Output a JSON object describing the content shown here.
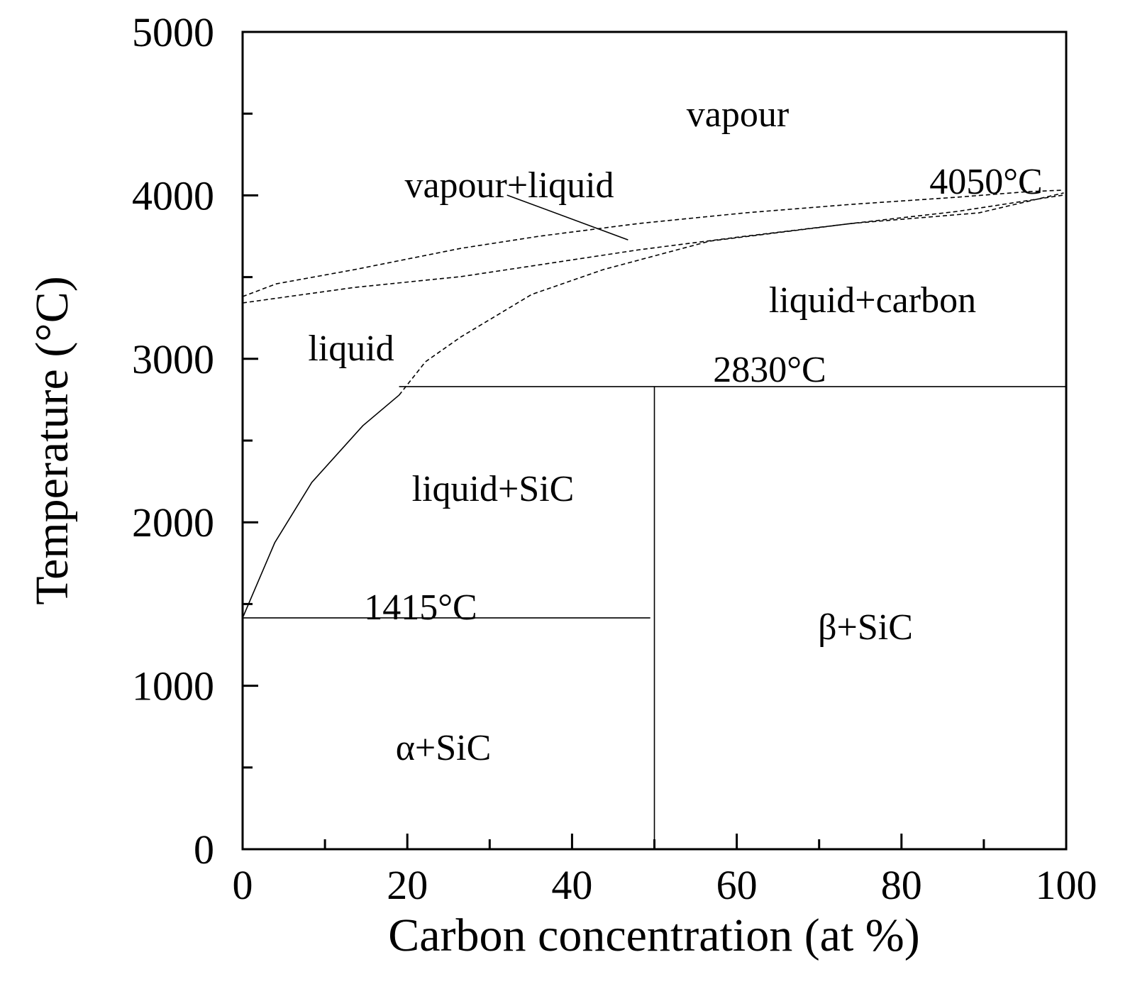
{
  "chart_data": {
    "type": "line",
    "xlabel": "Carbon concentration (at %)",
    "ylabel": "Temperature (°C)",
    "xlim": [
      0,
      100
    ],
    "xticks": [
      0,
      20,
      40,
      60,
      80,
      100
    ],
    "xminorticks": [
      10,
      30,
      50,
      70,
      90
    ],
    "ylim": [
      0,
      5000
    ],
    "yticks": [
      0,
      1000,
      2000,
      3000,
      4000,
      5000
    ],
    "yminorticks": [
      500,
      1500,
      2500,
      3500,
      4500
    ],
    "color": "#000000",
    "series": [
      {
        "style": "solid",
        "x": [
          0,
          3.9,
          8.4,
          14.6,
          19
        ],
        "values": [
          1415,
          1875,
          2244,
          2591,
          2778
        ]
      },
      {
        "style": "dashed",
        "x": [
          19,
          22.2,
          26.5,
          35.1,
          43.8,
          56.7,
          73.9,
          89.4,
          99.7
        ],
        "values": [
          2778,
          2982,
          3134,
          3394,
          3546,
          3720,
          3828,
          3893,
          4015
        ]
      },
      {
        "style": "dashed",
        "x": [
          0,
          4.1,
          13.6,
          26.5,
          36,
          48.1,
          61,
          73.9,
          86.8,
          95.4,
          99.7
        ],
        "values": [
          3381,
          3459,
          3546,
          3676,
          3750,
          3828,
          3893,
          3945,
          3989,
          4023,
          4032
        ]
      },
      {
        "style": "dashed",
        "x": [
          0,
          13.6,
          26.5,
          35.1,
          48.1,
          61,
          73.9,
          86.8,
          99.7
        ],
        "values": [
          3342,
          3437,
          3503,
          3568,
          3667,
          3750,
          3828,
          3902,
          4002
        ]
      },
      {
        "style": "solid",
        "x": [
          19,
          100
        ],
        "values": [
          2830,
          2830
        ]
      },
      {
        "style": "solid",
        "x": [
          0,
          49.5
        ],
        "values": [
          1415,
          1415
        ]
      },
      {
        "style": "solid",
        "x": [
          50,
          50
        ],
        "values": [
          0,
          2830
        ]
      },
      {
        "style": "solid",
        "x": [
          32.1,
          46.8
        ],
        "values": [
          4002,
          3728
        ]
      }
    ],
    "annotations": [
      "vapour",
      "vapour+liquid",
      "4050°C",
      "liquid+carbon",
      "liquid",
      "2830°C",
      "liquid+SiC",
      "1415°C",
      "β+SiC",
      "α+SiC"
    ]
  }
}
